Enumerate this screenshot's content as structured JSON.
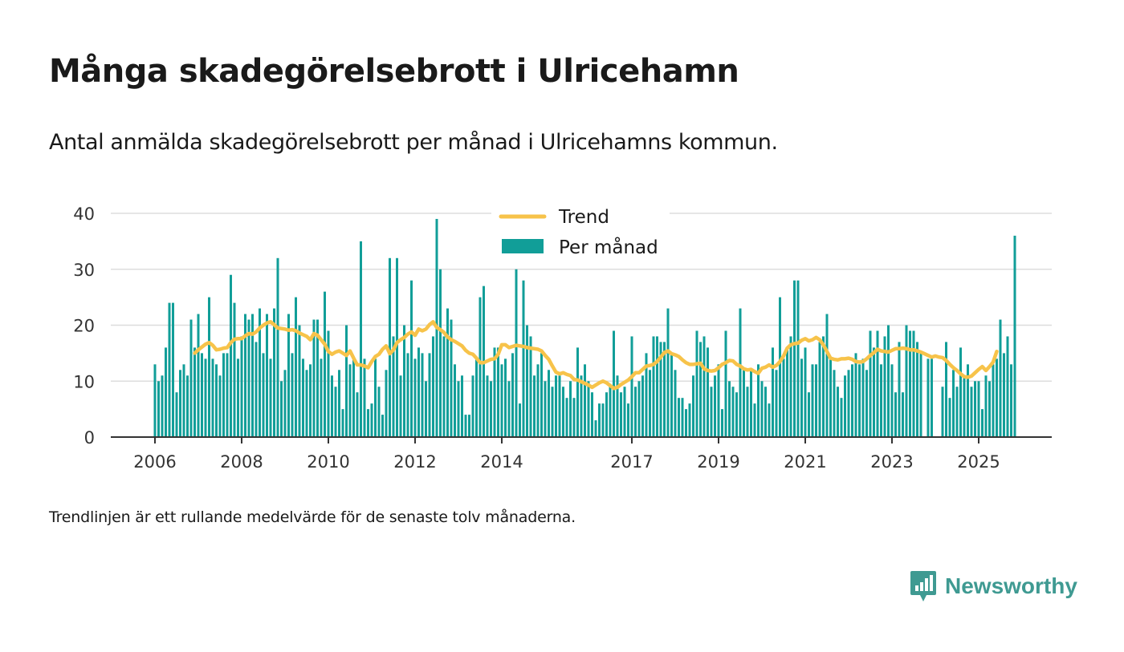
{
  "title": "Många skadegörelsebrott i Ulricehamn",
  "subtitle": "Antal anmälda skadegörelsebrott per månad i Ulricehamns kommun.",
  "footnote": "Trendlinjen är ett rullande medelvärde för de senaste tolv månaderna.",
  "brand": {
    "name": "Newsworthy",
    "icon": "newsworthy-logo-icon",
    "color": "#3f9a92"
  },
  "colors": {
    "bars": "#119e98",
    "trend": "#f7c34a",
    "grid": "#dddddd",
    "axis": "#333333"
  },
  "chart_data": {
    "type": "bar",
    "title": "Många skadegörelsebrott i Ulricehamn",
    "xlabel": "",
    "ylabel": "",
    "ylim": [
      0,
      40
    ],
    "yticks": [
      0,
      10,
      20,
      30,
      40
    ],
    "xticks": [
      "2006",
      "2008",
      "2010",
      "2012",
      "2014",
      "2017",
      "2019",
      "2021",
      "2023",
      "2025"
    ],
    "grid": true,
    "legend_position": "top-center",
    "start": "2006-01",
    "series": [
      {
        "name": "Per månad",
        "type": "bar",
        "values": [
          13,
          10,
          11,
          16,
          24,
          24,
          8,
          12,
          13,
          11,
          21,
          16,
          22,
          15,
          14,
          25,
          14,
          13,
          11,
          15,
          15,
          29,
          24,
          14,
          18,
          22,
          21,
          22,
          17,
          23,
          15,
          22,
          14,
          23,
          32,
          10,
          12,
          22,
          15,
          25,
          20,
          14,
          12,
          13,
          21,
          21,
          14,
          26,
          19,
          11,
          9,
          12,
          5,
          20,
          13,
          14,
          8,
          35,
          14,
          5,
          6,
          14,
          9,
          4,
          12,
          32,
          18,
          32,
          11,
          20,
          15,
          28,
          14,
          16,
          15,
          10,
          15,
          18,
          39,
          30,
          18,
          23,
          21,
          13,
          10,
          11,
          4,
          4,
          11,
          14,
          25,
          27,
          11,
          10,
          16,
          16,
          13,
          14,
          10,
          15,
          30,
          6,
          28,
          20,
          18,
          11,
          13,
          15,
          10,
          12,
          9,
          11,
          11,
          9,
          7,
          10,
          7,
          16,
          11,
          13,
          10,
          8,
          3,
          6,
          6,
          8,
          9,
          19,
          11,
          8,
          9,
          6,
          18,
          9,
          10,
          11,
          15,
          12,
          18,
          18,
          17,
          17,
          23,
          15,
          12,
          7,
          7,
          5,
          6,
          11,
          19,
          17,
          18,
          16,
          9,
          11,
          13,
          5,
          19,
          10,
          9,
          8,
          23,
          12,
          9,
          12,
          6,
          13,
          10,
          9,
          6,
          16,
          12,
          25,
          14,
          16,
          18,
          28,
          28,
          14,
          16,
          8,
          13,
          13,
          17,
          18,
          22,
          14,
          12,
          9,
          7,
          11,
          12,
          13,
          15,
          13,
          14,
          12,
          19,
          16,
          19,
          13,
          18,
          20,
          13,
          8,
          17,
          8,
          20,
          19,
          19,
          17,
          15,
          0,
          14,
          14,
          0,
          0,
          9,
          17,
          7,
          12,
          9,
          16,
          11,
          13,
          9,
          10,
          10,
          5,
          11,
          10,
          13,
          14,
          21,
          15,
          18,
          13,
          36
        ]
      },
      {
        "name": "Trend",
        "type": "line",
        "start": "2006-12",
        "values": [
          15.0,
          15.6,
          16.1,
          16.6,
          16.9,
          16.4,
          15.6,
          15.7,
          15.9,
          16.0,
          16.9,
          17.5,
          17.6,
          17.6,
          18.1,
          18.5,
          18.4,
          18.8,
          19.5,
          20.0,
          20.4,
          20.6,
          20.1,
          19.5,
          19.4,
          19.3,
          19.1,
          19.2,
          19.0,
          18.6,
          18.3,
          18.0,
          17.4,
          18.5,
          18.2,
          17.4,
          16.6,
          15.3,
          14.8,
          15.2,
          15.4,
          15.0,
          14.6,
          15.4,
          14.1,
          12.9,
          12.9,
          12.7,
          12.4,
          13.5,
          14.4,
          14.8,
          15.7,
          16.3,
          14.9,
          15.6,
          16.9,
          17.4,
          17.8,
          18.4,
          18.8,
          18.2,
          19.3,
          19.0,
          19.3,
          20.1,
          20.6,
          19.6,
          19.2,
          18.7,
          17.9,
          17.4,
          17.1,
          16.7,
          16.3,
          15.5,
          15.0,
          14.8,
          14.1,
          13.3,
          13.3,
          13.6,
          13.9,
          14.0,
          14.8,
          16.5,
          16.5,
          16.0,
          16.2,
          16.4,
          16.3,
          16.2,
          16.0,
          15.9,
          15.8,
          15.7,
          15.4,
          14.6,
          13.9,
          12.7,
          11.6,
          11.3,
          11.5,
          11.2,
          11.0,
          10.3,
          10.2,
          9.9,
          9.6,
          9.3,
          8.9,
          9.3,
          9.7,
          10.0,
          9.7,
          9.2,
          8.7,
          8.9,
          9.4,
          9.8,
          10.2,
          10.8,
          11.5,
          11.5,
          12.1,
          12.7,
          12.8,
          13.0,
          13.5,
          14.3,
          15.1,
          15.4,
          14.9,
          14.7,
          14.4,
          13.8,
          13.3,
          13.0,
          13.0,
          13.1,
          13.2,
          12.2,
          11.9,
          11.8,
          11.9,
          12.4,
          13.0,
          13.3,
          13.7,
          13.6,
          13.0,
          12.7,
          12.2,
          12.0,
          12.1,
          11.7,
          11.4,
          12.3,
          12.5,
          12.9,
          12.5,
          12.8,
          13.5,
          14.5,
          15.9,
          16.5,
          16.7,
          16.8,
          17.3,
          17.6,
          17.2,
          17.4,
          17.8,
          17.4,
          16.5,
          15.3,
          14.1,
          13.9,
          13.8,
          14.0,
          14.0,
          14.1,
          13.9,
          13.5,
          13.4,
          13.5,
          14.0,
          14.6,
          15.1,
          15.7,
          15.4,
          15.3,
          15.2,
          15.5,
          15.8,
          15.8,
          15.9,
          15.8,
          15.6,
          15.6,
          15.4,
          15.2,
          14.9,
          14.6,
          14.3,
          14.5,
          14.3,
          14.2,
          13.7,
          13.0,
          12.4,
          11.9,
          11.3,
          10.8,
          10.7,
          10.9,
          11.5,
          12.1,
          12.6,
          11.9,
          12.6,
          13.4,
          15.3
        ]
      }
    ]
  }
}
